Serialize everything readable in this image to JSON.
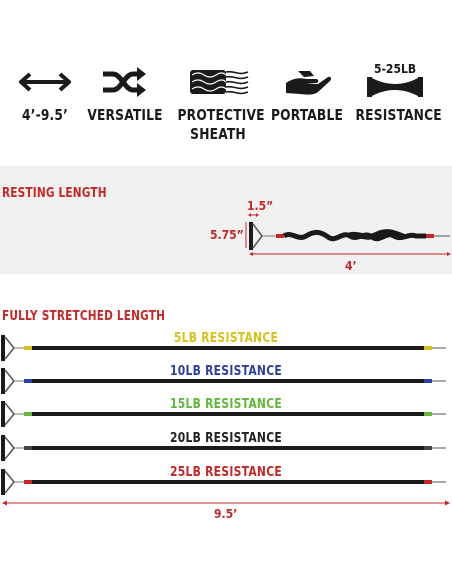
{
  "features": [
    {
      "icon": "double-arrow-icon",
      "label": "4’-9.5’"
    },
    {
      "icon": "shuffle-arrows-icon",
      "label": "VERSATILE"
    },
    {
      "icon": "braided-sheath-icon",
      "label": "PROTECTIVE SHEATH"
    },
    {
      "icon": "hand-holding-icon",
      "label": "PORTABLE"
    },
    {
      "icon": "stretch-band-icon",
      "label": "RESISTANCE"
    }
  ],
  "resistance_range": "5-25LB",
  "resting": {
    "title": "RESTING LENGTH",
    "handle_width": "1.5”",
    "handle_height": "5.75”",
    "length": "4’"
  },
  "stretched": {
    "title": "FULLY STRETCHED LENGTH",
    "length": "9.5’",
    "bands": [
      {
        "label": "5LB RESISTANCE",
        "color": "#d6c21a"
      },
      {
        "label": "10LB RESISTANCE",
        "color": "#2e3f9e"
      },
      {
        "label": "15LB RESISTANCE",
        "color": "#62b83a"
      },
      {
        "label": "20LB RESISTANCE",
        "color": "#222222"
      },
      {
        "label": "25LB RESISTANCE",
        "color": "#c62828"
      }
    ]
  },
  "colors": {
    "accent": "#c62828",
    "text": "#1a1a1a"
  }
}
